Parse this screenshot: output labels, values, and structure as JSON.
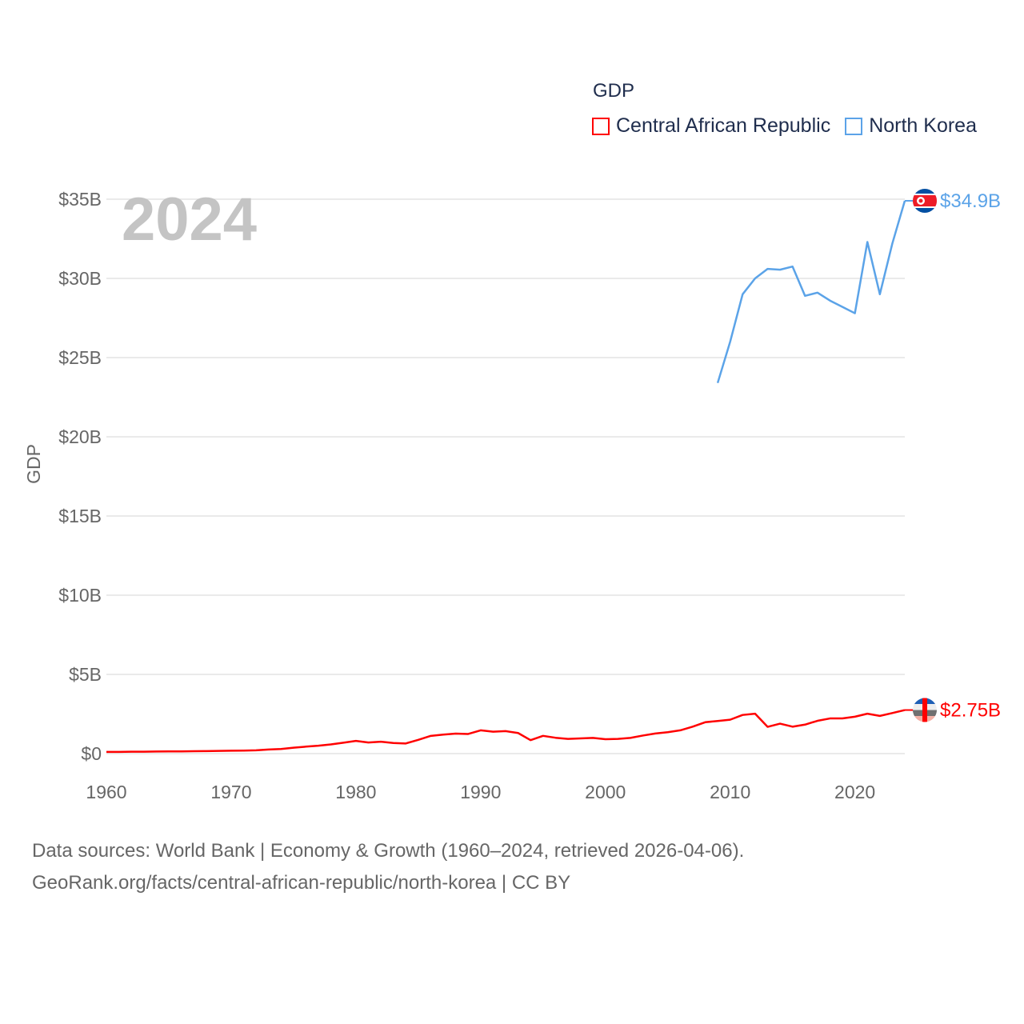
{
  "chart_data": {
    "type": "line",
    "title": "GDP",
    "ylabel": "GDP",
    "xlabel": "",
    "year_watermark": "2024",
    "ylim": [
      0,
      35
    ],
    "xlim": [
      1960,
      2024
    ],
    "yticks": [
      0,
      5,
      10,
      15,
      20,
      25,
      30,
      35
    ],
    "ytick_labels": [
      "$0",
      "$5B",
      "$10B",
      "$15B",
      "$20B",
      "$25B",
      "$30B",
      "$35B"
    ],
    "xticks": [
      1960,
      1970,
      1980,
      1990,
      2000,
      2010,
      2020
    ],
    "xtick_labels": [
      "1960",
      "1970",
      "1980",
      "1990",
      "2000",
      "2010",
      "2020"
    ],
    "grid": true,
    "legend_position": "top-right",
    "series": [
      {
        "name": "Central African Republic",
        "color": "#ff0000",
        "end_label": "$2.75B",
        "flag": "central-african-republic-flag",
        "x": [
          1960,
          1961,
          1962,
          1963,
          1964,
          1965,
          1966,
          1967,
          1968,
          1969,
          1970,
          1971,
          1972,
          1973,
          1974,
          1975,
          1976,
          1977,
          1978,
          1979,
          1980,
          1981,
          1982,
          1983,
          1984,
          1985,
          1986,
          1987,
          1988,
          1989,
          1990,
          1991,
          1992,
          1993,
          1994,
          1995,
          1996,
          1997,
          1998,
          1999,
          2000,
          2001,
          2002,
          2003,
          2004,
          2005,
          2006,
          2007,
          2008,
          2009,
          2010,
          2011,
          2012,
          2013,
          2014,
          2015,
          2016,
          2017,
          2018,
          2019,
          2020,
          2021,
          2022,
          2023,
          2024
        ],
        "values": [
          0.11,
          0.11,
          0.12,
          0.12,
          0.13,
          0.14,
          0.14,
          0.15,
          0.16,
          0.17,
          0.18,
          0.19,
          0.21,
          0.26,
          0.29,
          0.37,
          0.44,
          0.5,
          0.58,
          0.69,
          0.8,
          0.7,
          0.75,
          0.67,
          0.64,
          0.87,
          1.12,
          1.2,
          1.26,
          1.24,
          1.47,
          1.38,
          1.42,
          1.3,
          0.85,
          1.12,
          1.0,
          0.93,
          0.96,
          0.99,
          0.91,
          0.93,
          0.99,
          1.14,
          1.27,
          1.35,
          1.47,
          1.7,
          1.98,
          2.06,
          2.14,
          2.44,
          2.52,
          1.69,
          1.89,
          1.7,
          1.83,
          2.07,
          2.22,
          2.22,
          2.33,
          2.52,
          2.38,
          2.56,
          2.75
        ]
      },
      {
        "name": "North Korea",
        "color": "#5ba3e8",
        "end_label": "$34.9B",
        "flag": "north-korea-flag",
        "x": [
          2009,
          2010,
          2011,
          2012,
          2013,
          2014,
          2015,
          2016,
          2017,
          2018,
          2019,
          2020,
          2021,
          2022,
          2023,
          2024
        ],
        "values": [
          23.4,
          26.0,
          29.0,
          30.0,
          30.6,
          30.55,
          30.75,
          28.9,
          29.1,
          28.6,
          28.2,
          27.8,
          32.3,
          29.0,
          32.2,
          34.9
        ]
      }
    ]
  },
  "footer": {
    "line1": "Data sources: World Bank | Economy & Growth (1960–2024, retrieved 2026-04-06).",
    "line2": "GeoRank.org/facts/central-african-republic/north-korea | CC BY"
  }
}
